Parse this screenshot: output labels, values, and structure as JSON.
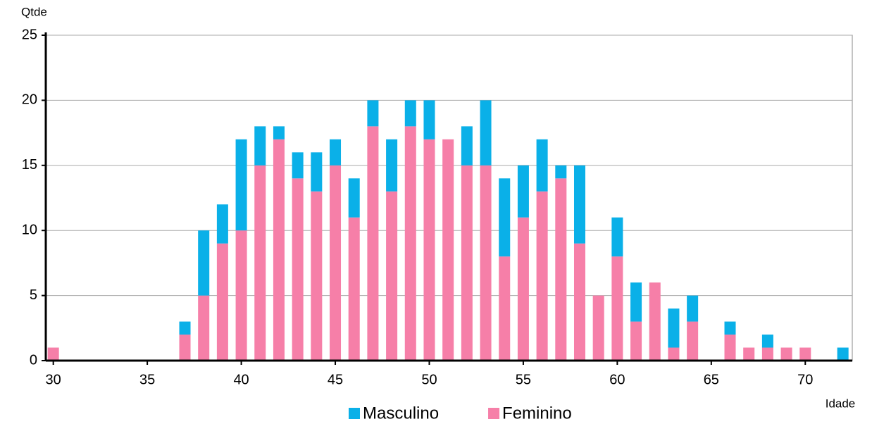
{
  "chart_data": {
    "type": "stacked_bar",
    "x_label": "Idade",
    "y_label": "Qtde",
    "x": [
      30,
      31,
      32,
      33,
      34,
      35,
      36,
      37,
      38,
      39,
      40,
      41,
      42,
      43,
      44,
      45,
      46,
      47,
      48,
      49,
      50,
      51,
      52,
      53,
      54,
      55,
      56,
      57,
      58,
      59,
      60,
      61,
      62,
      63,
      64,
      65,
      66,
      67,
      68,
      69,
      70,
      71,
      72
    ],
    "series": [
      {
        "name": "Masculino",
        "color": "#0ab0e8",
        "values": [
          0,
          0,
          0,
          0,
          0,
          0,
          0,
          1,
          5,
          3,
          7,
          3,
          1,
          2,
          3,
          2,
          3,
          2,
          4,
          2,
          3,
          0,
          3,
          5,
          6,
          4,
          4,
          1,
          6,
          0,
          3,
          3,
          0,
          3,
          2,
          0,
          1,
          0,
          1,
          0,
          0,
          0,
          1
        ]
      },
      {
        "name": "Feminino",
        "color": "#f67fa8",
        "values": [
          1,
          0,
          0,
          0,
          0,
          0,
          0,
          2,
          5,
          9,
          10,
          15,
          17,
          14,
          13,
          15,
          11,
          18,
          13,
          18,
          17,
          17,
          15,
          15,
          8,
          11,
          13,
          14,
          9,
          5,
          8,
          3,
          6,
          1,
          3,
          0,
          2,
          1,
          1,
          1,
          1,
          0,
          0
        ]
      }
    ],
    "xlim": [
      29.6,
      72.5
    ],
    "xticks": [
      30,
      35,
      40,
      45,
      50,
      55,
      60,
      65,
      70
    ],
    "ylim": [
      0,
      25
    ],
    "yticks": [
      0,
      5,
      10,
      15,
      20,
      25
    ],
    "grid": true,
    "legend": "bottom"
  }
}
